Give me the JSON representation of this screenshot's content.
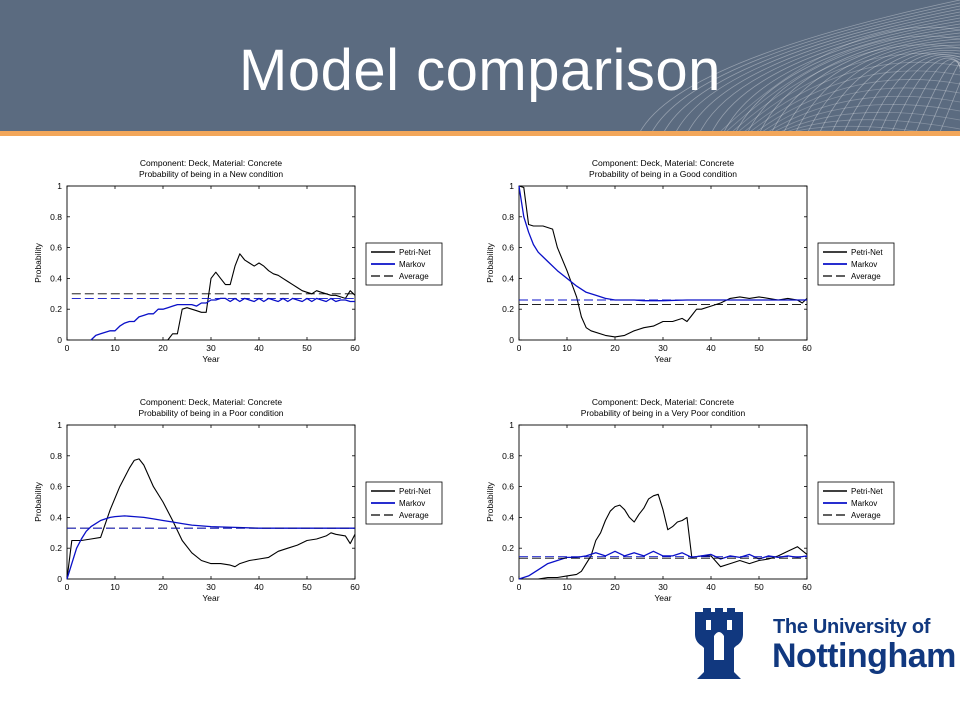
{
  "slide": {
    "title": "Model comparison"
  },
  "logo": {
    "line1": "The University of",
    "line2": "Nottingham"
  },
  "colors": {
    "header": "#5b6b80",
    "accent_rule": "#f2a65a",
    "petri": "#000000",
    "markov": "#0a10c8",
    "logo_blue": "#11387f"
  },
  "chart_data": [
    {
      "type": "line",
      "title": "Component: Deck, Material: Concrete",
      "subtitle": "Probability of being in a New condition",
      "xlabel": "Year",
      "ylabel": "Probability",
      "xlim": [
        0,
        60
      ],
      "ylim": [
        0,
        1
      ],
      "xticks": [
        0,
        10,
        20,
        30,
        40,
        50,
        60
      ],
      "yticks": [
        0,
        0.2,
        0.4,
        0.6,
        0.8,
        1
      ],
      "legend_position": "right",
      "series": [
        {
          "name": "Petri-Net",
          "style": "solid-black",
          "x": [
            5,
            6,
            7,
            8,
            9,
            10,
            11,
            12,
            13,
            14,
            15,
            16,
            17,
            18,
            19,
            20,
            21,
            22,
            23,
            24,
            25,
            26,
            27,
            28,
            29,
            30,
            31,
            32,
            33,
            34,
            35,
            36,
            37,
            38,
            39,
            40,
            41,
            42,
            43,
            44,
            45,
            46,
            47,
            48,
            49,
            50,
            51,
            52,
            53,
            54,
            55,
            56,
            57,
            58,
            59,
            60
          ],
          "y": [
            0,
            0,
            0,
            0,
            0,
            0,
            0,
            0,
            0,
            0,
            0,
            0,
            0,
            0,
            0,
            0,
            0,
            0.04,
            0.04,
            0.2,
            0.21,
            0.2,
            0.19,
            0.18,
            0.18,
            0.4,
            0.44,
            0.4,
            0.36,
            0.36,
            0.48,
            0.56,
            0.52,
            0.5,
            0.48,
            0.5,
            0.48,
            0.45,
            0.43,
            0.42,
            0.4,
            0.38,
            0.36,
            0.34,
            0.32,
            0.31,
            0.3,
            0.32,
            0.31,
            0.3,
            0.29,
            0.29,
            0.28,
            0.27,
            0.32,
            0.29
          ]
        },
        {
          "name": "Markov",
          "style": "solid-blue",
          "x": [
            5,
            6,
            7,
            8,
            9,
            10,
            11,
            12,
            13,
            14,
            15,
            16,
            17,
            18,
            19,
            20,
            21,
            22,
            23,
            24,
            25,
            26,
            27,
            28,
            29,
            30,
            31,
            32,
            33,
            34,
            35,
            36,
            37,
            38,
            39,
            40,
            41,
            42,
            43,
            44,
            45,
            46,
            47,
            48,
            49,
            50,
            51,
            52,
            53,
            54,
            55,
            56,
            57,
            58,
            59,
            60
          ],
          "y": [
            0,
            0.03,
            0.04,
            0.05,
            0.06,
            0.06,
            0.09,
            0.11,
            0.12,
            0.12,
            0.15,
            0.16,
            0.17,
            0.17,
            0.2,
            0.2,
            0.21,
            0.22,
            0.23,
            0.23,
            0.23,
            0.23,
            0.22,
            0.24,
            0.24,
            0.26,
            0.26,
            0.27,
            0.27,
            0.25,
            0.27,
            0.25,
            0.27,
            0.26,
            0.25,
            0.27,
            0.25,
            0.27,
            0.26,
            0.25,
            0.27,
            0.25,
            0.27,
            0.26,
            0.25,
            0.27,
            0.25,
            0.27,
            0.26,
            0.25,
            0.27,
            0.25,
            0.26,
            0.26,
            0.25,
            0.25
          ]
        },
        {
          "name": "Average",
          "style": "dashed",
          "x": [
            1,
            60
          ],
          "y": [
            0.3,
            0.3
          ]
        },
        {
          "name": "",
          "style": "dashed-blue",
          "x": [
            1,
            60
          ],
          "y": [
            0.27,
            0.27
          ]
        }
      ]
    },
    {
      "type": "line",
      "title": "Component: Deck, Material: Concrete",
      "subtitle": "Probability of being in a Good condition",
      "xlabel": "Year",
      "ylabel": "Probability",
      "xlim": [
        0,
        60
      ],
      "ylim": [
        0,
        1
      ],
      "xticks": [
        0,
        10,
        20,
        30,
        40,
        50,
        60
      ],
      "yticks": [
        0,
        0.2,
        0.4,
        0.6,
        0.8,
        1
      ],
      "legend_position": "right",
      "series": [
        {
          "name": "Petri-Net",
          "style": "solid-black",
          "x": [
            0,
            1,
            2,
            3,
            5,
            7,
            8,
            10,
            12,
            13,
            14,
            15,
            18,
            20,
            22,
            24,
            26,
            28,
            30,
            32,
            34,
            35,
            36,
            37,
            38,
            40,
            42,
            44,
            46,
            48,
            50,
            52,
            54,
            56,
            58,
            59,
            60
          ],
          "y": [
            1,
            0.99,
            0.75,
            0.74,
            0.74,
            0.72,
            0.6,
            0.45,
            0.28,
            0.15,
            0.08,
            0.06,
            0.03,
            0.02,
            0.03,
            0.06,
            0.08,
            0.09,
            0.12,
            0.12,
            0.14,
            0.12,
            0.16,
            0.2,
            0.2,
            0.22,
            0.24,
            0.27,
            0.28,
            0.27,
            0.28,
            0.27,
            0.26,
            0.27,
            0.26,
            0.24,
            0.27
          ]
        },
        {
          "name": "Markov",
          "style": "solid-blue",
          "x": [
            0,
            1,
            2,
            3,
            4,
            6,
            8,
            10,
            12,
            14,
            16,
            18,
            20,
            22,
            24,
            26,
            28,
            30,
            35,
            40,
            45,
            50,
            55,
            60
          ],
          "y": [
            1,
            0.8,
            0.7,
            0.62,
            0.57,
            0.51,
            0.45,
            0.4,
            0.35,
            0.31,
            0.29,
            0.27,
            0.26,
            0.26,
            0.26,
            0.255,
            0.255,
            0.255,
            0.26,
            0.26,
            0.26,
            0.26,
            0.26,
            0.26
          ]
        },
        {
          "name": "Average",
          "style": "dashed",
          "x": [
            0,
            60
          ],
          "y": [
            0.23,
            0.23
          ]
        },
        {
          "name": "",
          "style": "dashed-blue",
          "x": [
            0,
            60
          ],
          "y": [
            0.26,
            0.26
          ]
        }
      ]
    },
    {
      "type": "line",
      "title": "Component: Deck, Material: Concrete",
      "subtitle": "Probability of being in a Poor condition",
      "xlabel": "Year",
      "ylabel": "Probability",
      "xlim": [
        0,
        60
      ],
      "ylim": [
        0,
        1
      ],
      "xticks": [
        0,
        10,
        20,
        30,
        40,
        50,
        60
      ],
      "yticks": [
        0,
        0.2,
        0.4,
        0.6,
        0.8,
        1
      ],
      "legend_position": "right",
      "series": [
        {
          "name": "Petri-Net",
          "style": "solid-black",
          "x": [
            0,
            1,
            2,
            3,
            5,
            7,
            9,
            11,
            13,
            14,
            15,
            16,
            18,
            20,
            22,
            24,
            26,
            28,
            30,
            32,
            34,
            35,
            36,
            38,
            40,
            42,
            44,
            46,
            48,
            50,
            52,
            54,
            55,
            56,
            58,
            59,
            60
          ],
          "y": [
            0,
            0.25,
            0.25,
            0.25,
            0.26,
            0.27,
            0.45,
            0.6,
            0.72,
            0.77,
            0.78,
            0.74,
            0.6,
            0.5,
            0.38,
            0.25,
            0.17,
            0.12,
            0.1,
            0.1,
            0.09,
            0.08,
            0.1,
            0.12,
            0.13,
            0.14,
            0.18,
            0.2,
            0.22,
            0.25,
            0.26,
            0.28,
            0.3,
            0.29,
            0.28,
            0.23,
            0.29
          ]
        },
        {
          "name": "Markov",
          "style": "solid-blue",
          "x": [
            0,
            1,
            2,
            3,
            4,
            5,
            6,
            7,
            8,
            9,
            10,
            12,
            14,
            16,
            18,
            20,
            22,
            24,
            26,
            28,
            30,
            35,
            40,
            45,
            50,
            55,
            60
          ],
          "y": [
            0,
            0.1,
            0.2,
            0.26,
            0.31,
            0.34,
            0.36,
            0.38,
            0.39,
            0.4,
            0.405,
            0.41,
            0.405,
            0.4,
            0.39,
            0.38,
            0.37,
            0.36,
            0.35,
            0.345,
            0.34,
            0.335,
            0.33,
            0.33,
            0.33,
            0.33,
            0.33
          ]
        },
        {
          "name": "Average",
          "style": "dashed",
          "x": [
            0,
            60
          ],
          "y": [
            0.33,
            0.33
          ]
        },
        {
          "name": "",
          "style": "dashed-blue",
          "x": [
            0,
            60
          ],
          "y": [
            0.33,
            0.33
          ]
        }
      ]
    },
    {
      "type": "line",
      "title": "Component: Deck, Material: Concrete",
      "subtitle": "Probability of being in a Very Poor condition",
      "xlabel": "Year",
      "ylabel": "Probability",
      "xlim": [
        0,
        60
      ],
      "ylim": [
        0,
        1
      ],
      "xticks": [
        0,
        10,
        20,
        30,
        40,
        50,
        60
      ],
      "yticks": [
        0,
        0.2,
        0.4,
        0.6,
        0.8,
        1
      ],
      "legend_position": "right",
      "series": [
        {
          "name": "Petri-Net",
          "style": "solid-black",
          "x": [
            0,
            4,
            6,
            8,
            10,
            12,
            13,
            14,
            15,
            16,
            17,
            18,
            19,
            20,
            21,
            22,
            23,
            24,
            25,
            26,
            27,
            28,
            29,
            30,
            31,
            32,
            33,
            34,
            35,
            36,
            38,
            40,
            42,
            44,
            46,
            48,
            50,
            52,
            54,
            56,
            58,
            60
          ],
          "y": [
            0,
            0,
            0.01,
            0.01,
            0.02,
            0.03,
            0.05,
            0.1,
            0.15,
            0.25,
            0.3,
            0.38,
            0.44,
            0.47,
            0.48,
            0.45,
            0.4,
            0.37,
            0.42,
            0.46,
            0.52,
            0.54,
            0.55,
            0.45,
            0.32,
            0.34,
            0.37,
            0.38,
            0.4,
            0.14,
            0.15,
            0.15,
            0.08,
            0.1,
            0.12,
            0.1,
            0.12,
            0.13,
            0.15,
            0.18,
            0.21,
            0.16
          ]
        },
        {
          "name": "Markov",
          "style": "solid-blue",
          "x": [
            0,
            2,
            4,
            6,
            8,
            10,
            12,
            14,
            16,
            18,
            20,
            22,
            24,
            26,
            28,
            30,
            32,
            34,
            36,
            38,
            40,
            42,
            44,
            46,
            48,
            50,
            52,
            54,
            56,
            58,
            60
          ],
          "y": [
            0,
            0.02,
            0.06,
            0.1,
            0.12,
            0.14,
            0.14,
            0.15,
            0.17,
            0.15,
            0.18,
            0.15,
            0.17,
            0.15,
            0.18,
            0.15,
            0.15,
            0.17,
            0.14,
            0.15,
            0.16,
            0.13,
            0.15,
            0.14,
            0.16,
            0.13,
            0.15,
            0.14,
            0.15,
            0.14,
            0.15
          ]
        },
        {
          "name": "Average",
          "style": "dashed",
          "x": [
            0,
            60
          ],
          "y": [
            0.135,
            0.135
          ]
        },
        {
          "name": "",
          "style": "dashed-blue",
          "x": [
            0,
            60
          ],
          "y": [
            0.145,
            0.145
          ]
        }
      ]
    }
  ]
}
